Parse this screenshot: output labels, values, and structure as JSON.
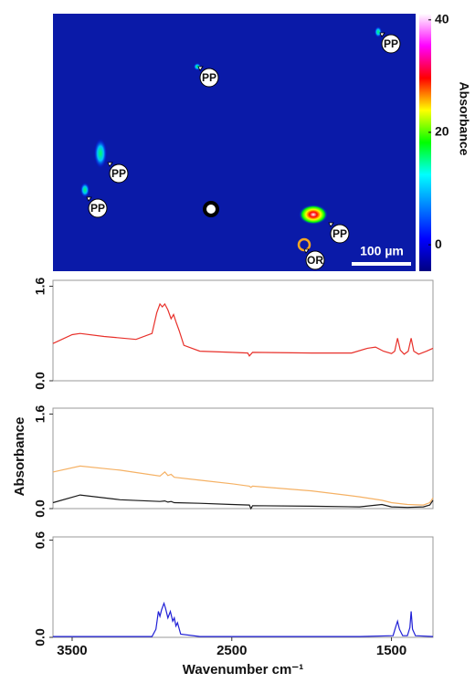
{
  "chart_data": [
    {
      "type": "heatmap",
      "colorbar_label": "Absorbance",
      "zlim": [
        -4.7,
        41.1
      ],
      "zticks": [
        0,
        20,
        40
      ],
      "colormap": [
        "#000080",
        "#0000ff",
        "#0080ff",
        "#00ffff",
        "#00ff00",
        "#ffff00",
        "#ff0000",
        "#ff00ff",
        "#ffffff"
      ],
      "annotations": [
        "PP",
        "PP",
        "PP",
        "PP",
        "PP",
        "OR"
      ],
      "scale_bar": "100 µm"
    },
    {
      "type": "line",
      "xlim": [
        3620,
        1240
      ],
      "ylim": [
        0,
        1.7
      ],
      "yticks": [
        {
          "value": 0,
          "label": "0.0"
        },
        1.6
      ],
      "x": [
        3620,
        3500,
        3450,
        3300,
        3100,
        3000,
        2970,
        2950,
        2935,
        2920,
        2900,
        2880,
        2865,
        2850,
        2830,
        2800,
        2700,
        2500,
        2400,
        2390,
        2370,
        2000,
        1750,
        1650,
        1600,
        1550,
        1500,
        1480,
        1462,
        1445,
        1420,
        1395,
        1377,
        1360,
        1330,
        1280,
        1240
      ],
      "series": [
        {
          "color": "#e8302a",
          "values": [
            0.63,
            0.78,
            0.8,
            0.75,
            0.7,
            0.8,
            1.15,
            1.3,
            1.25,
            1.3,
            1.2,
            1.05,
            1.12,
            1.0,
            0.85,
            0.6,
            0.5,
            0.48,
            0.47,
            0.42,
            0.48,
            0.47,
            0.47,
            0.55,
            0.57,
            0.5,
            0.46,
            0.5,
            0.72,
            0.52,
            0.45,
            0.5,
            0.72,
            0.5,
            0.45,
            0.5,
            0.55
          ]
        }
      ]
    },
    {
      "type": "line",
      "xlim": [
        3620,
        1240
      ],
      "ylim": [
        0,
        1.7
      ],
      "yticks": [
        {
          "value": 0,
          "label": "0.0"
        },
        1.6
      ],
      "ylabel": "Absorbance",
      "x": [
        3620,
        3450,
        3200,
        2950,
        2920,
        2900,
        2880,
        2860,
        2700,
        2500,
        2390,
        2380,
        2370,
        2000,
        1700,
        1560,
        1500,
        1400,
        1300,
        1260,
        1240
      ],
      "series": [
        {
          "color": "#f5b164",
          "values": [
            0.62,
            0.72,
            0.65,
            0.55,
            0.62,
            0.56,
            0.58,
            0.53,
            0.48,
            0.42,
            0.38,
            0.36,
            0.38,
            0.3,
            0.2,
            0.14,
            0.1,
            0.07,
            0.06,
            0.1,
            0.18
          ]
        },
        {
          "color": "#1a1a1a",
          "values": [
            0.1,
            0.23,
            0.15,
            0.12,
            0.13,
            0.11,
            0.12,
            0.1,
            0.09,
            0.07,
            0.06,
            0.0,
            0.05,
            0.04,
            0.03,
            0.07,
            0.03,
            0.02,
            0.03,
            0.06,
            0.14
          ]
        }
      ]
    },
    {
      "type": "line",
      "xlim": [
        3620,
        1240
      ],
      "ylim": [
        0,
        0.62
      ],
      "yticks": [
        {
          "value": 0,
          "label": "0.0"
        },
        0.6
      ],
      "xticks": [
        3500,
        2500,
        1500
      ],
      "xlabel": "Wavenumber cm⁻¹",
      "x": [
        3620,
        3000,
        2975,
        2960,
        2950,
        2940,
        2925,
        2915,
        2900,
        2885,
        2870,
        2860,
        2850,
        2840,
        2820,
        2700,
        1700,
        1490,
        1475,
        1462,
        1450,
        1430,
        1400,
        1385,
        1377,
        1368,
        1350,
        1240
      ],
      "series": [
        {
          "color": "#1f1fd6",
          "values": [
            0.005,
            0.005,
            0.05,
            0.16,
            0.13,
            0.17,
            0.21,
            0.18,
            0.12,
            0.16,
            0.1,
            0.12,
            0.07,
            0.09,
            0.02,
            0.005,
            0.005,
            0.01,
            0.06,
            0.1,
            0.05,
            0.01,
            0.01,
            0.06,
            0.16,
            0.05,
            0.01,
            0.005
          ]
        }
      ]
    }
  ]
}
